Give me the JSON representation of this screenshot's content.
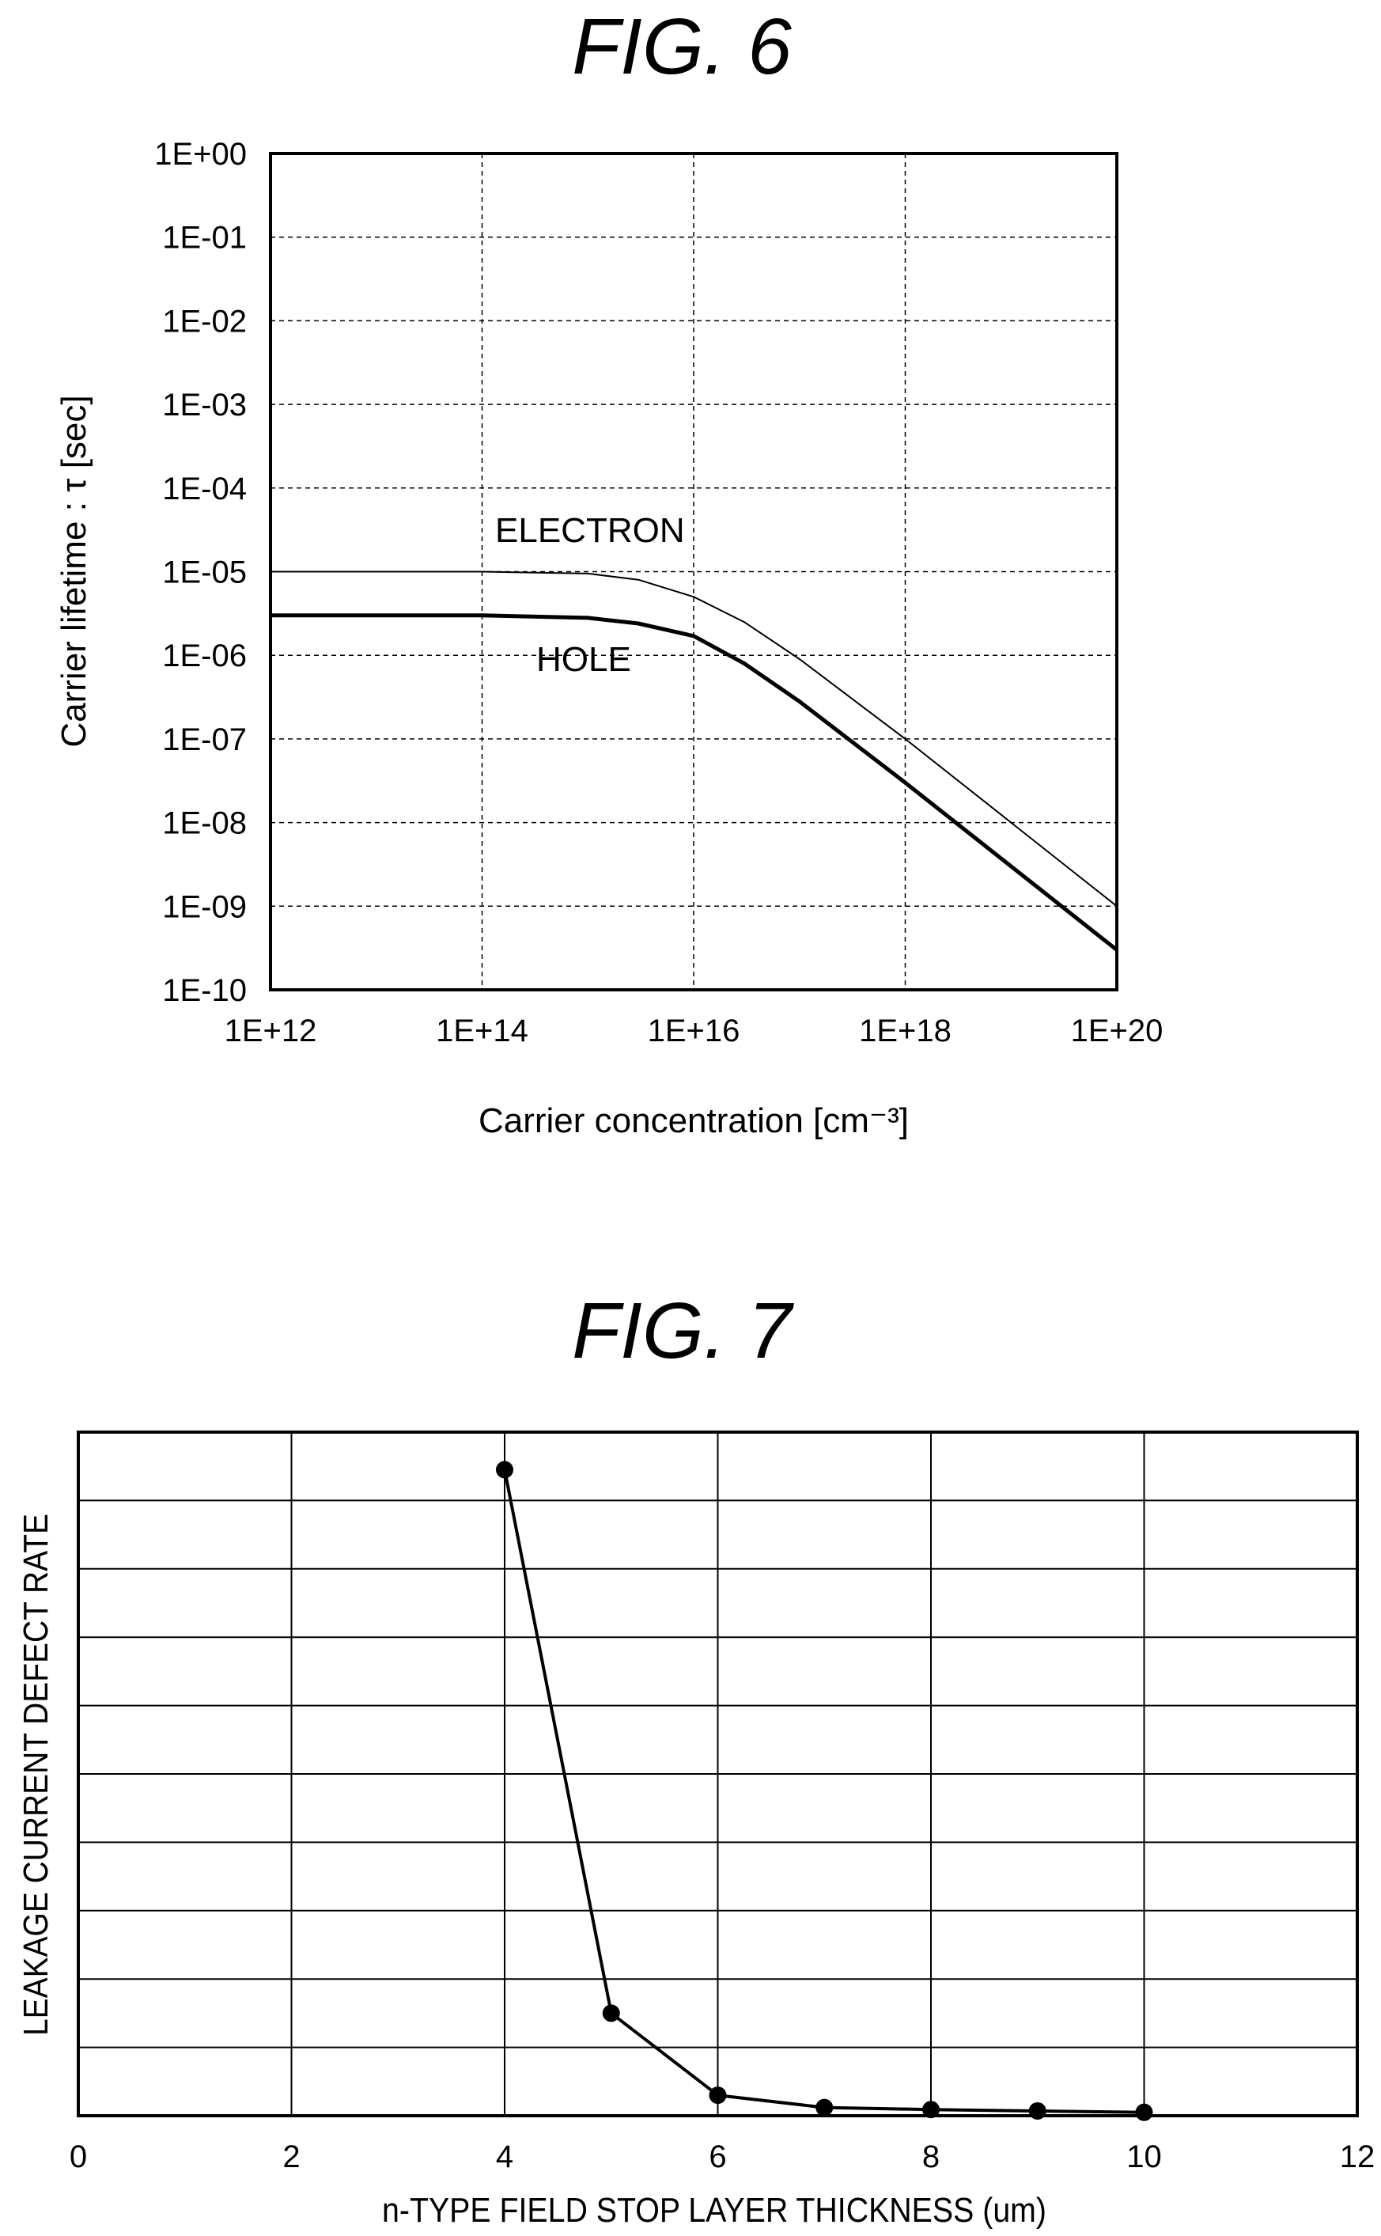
{
  "chart_data": [
    {
      "type": "line",
      "title": "FIG. 6",
      "xlabel": "Carrier concentration [cm⁻³]",
      "ylabel": "Carrier lifetime : τ [sec]",
      "xscale": "log",
      "yscale": "log",
      "xlim": [
        1000000000000.0,
        1e+20
      ],
      "ylim": [
        1e-10,
        1
      ],
      "grid": true,
      "xticks": [
        1000000000000.0,
        100000000000000.0,
        1e+16,
        1e+18,
        1e+20
      ],
      "xtick_labels": [
        "1E+12",
        "1E+14",
        "1E+16",
        "1E+18",
        "1E+20"
      ],
      "yticks": [
        1,
        0.1,
        0.01,
        0.001,
        0.0001,
        1e-05,
        1e-06,
        1e-07,
        1e-08,
        1e-09,
        1e-10
      ],
      "ytick_labels": [
        "1E+00",
        "1E-01",
        "1E-02",
        "1E-03",
        "1E-04",
        "1E-05",
        "1E-06",
        "1E-07",
        "1E-08",
        "1E-09",
        "1E-10"
      ],
      "series": [
        {
          "name": "ELECTRON",
          "x": [
            1000000000000.0,
            10000000000000.0,
            100000000000000.0,
            1000000000000000.0,
            3000000000000000.0,
            1e+16,
            3e+16,
            1e+17,
            1e+18,
            1e+19,
            1e+20
          ],
          "values": [
            1e-05,
            1e-05,
            1e-05,
            9.5e-06,
            8e-06,
            5e-06,
            2.5e-06,
            9e-07,
            1e-07,
            1e-08,
            1e-09
          ]
        },
        {
          "name": "HOLE",
          "x": [
            1000000000000.0,
            10000000000000.0,
            100000000000000.0,
            1000000000000000.0,
            3000000000000000.0,
            1e+16,
            3e+16,
            1e+17,
            1e+18,
            1e+19,
            1e+20
          ],
          "values": [
            3e-06,
            3e-06,
            3e-06,
            2.8e-06,
            2.4e-06,
            1.7e-06,
            8e-07,
            2.8e-07,
            3e-08,
            3e-09,
            3e-10
          ]
        }
      ],
      "annotations": [
        "ELECTRON",
        "HOLE"
      ]
    },
    {
      "type": "line",
      "title": "FIG. 7",
      "xlabel": "n-TYPE FIELD STOP LAYER THICKNESS (um)",
      "ylabel": "LEAKAGE CURRENT DEFECT RATE",
      "xlim": [
        0,
        12
      ],
      "ylim": [
        0,
        10
      ],
      "grid": true,
      "xticks": [
        0,
        2,
        4,
        6,
        8,
        10,
        12
      ],
      "xtick_labels": [
        "0",
        "2",
        "4",
        "6",
        "8",
        "10",
        "12"
      ],
      "yticks": [
        0,
        1,
        2,
        3,
        4,
        5,
        6,
        7,
        8,
        9,
        10
      ],
      "series": [
        {
          "name": "",
          "x": [
            4,
            5,
            6,
            7,
            8,
            9,
            10
          ],
          "values": [
            9.45,
            1.5,
            0.3,
            0.12,
            0.09,
            0.07,
            0.05
          ]
        }
      ]
    }
  ]
}
